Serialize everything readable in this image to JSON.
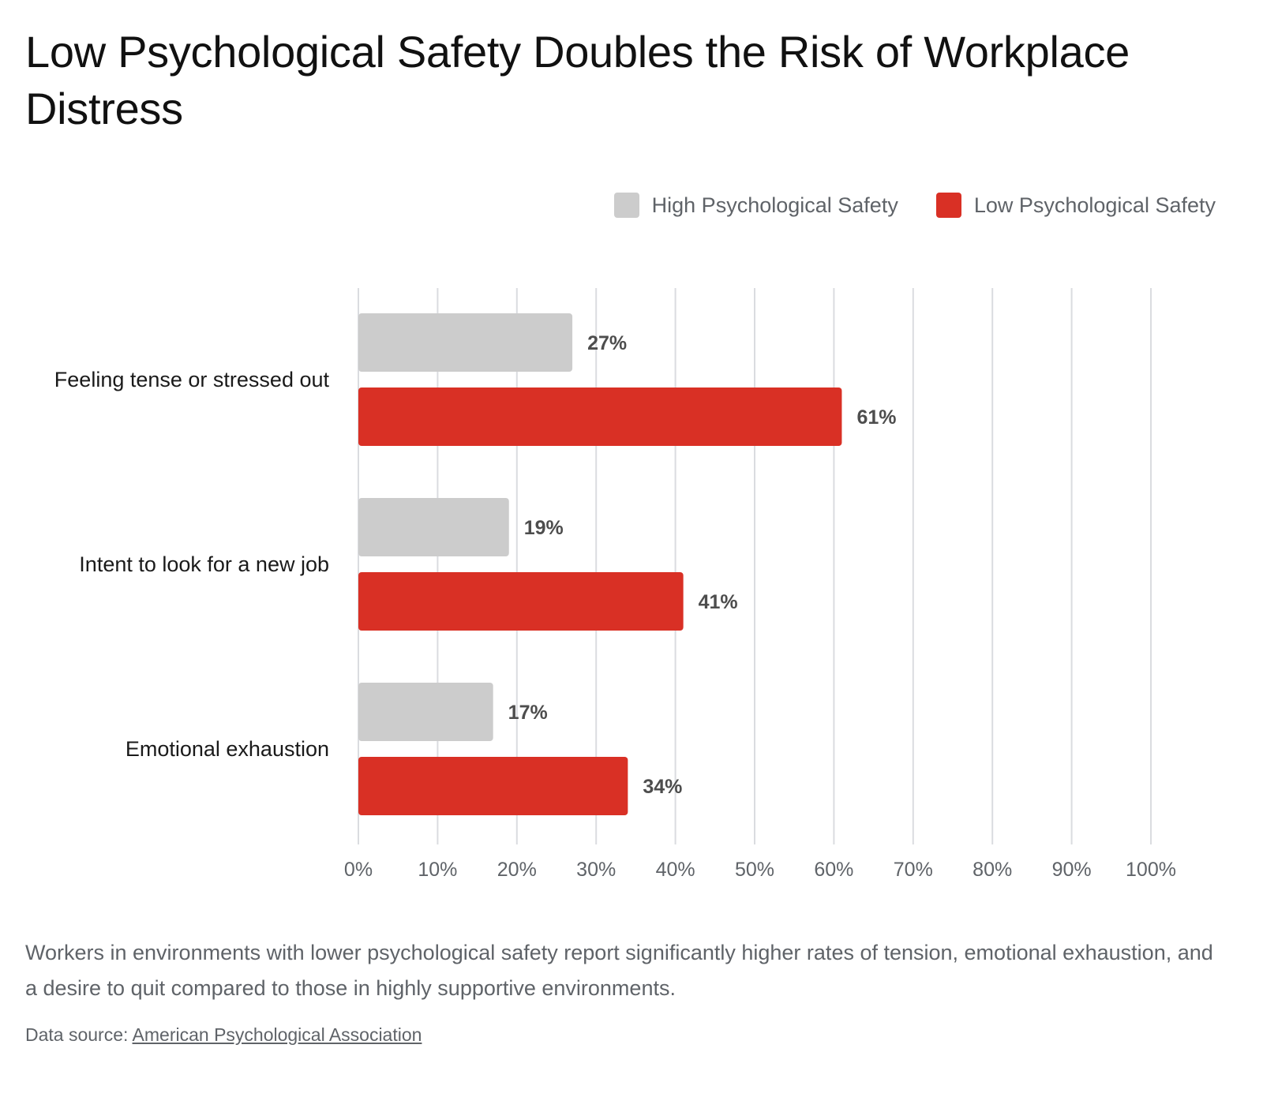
{
  "title": "Low Psychological Safety Doubles the Risk of Workplace Distress",
  "legend": {
    "high_label": "High Psychological Safety",
    "low_label": "Low Psychological Safety"
  },
  "colors": {
    "high": "#cccccc",
    "low": "#d93025",
    "grid": "#dadce0",
    "tick_text": "#5f6368",
    "value_text": "#4d4d4d"
  },
  "chart_data": {
    "type": "bar",
    "orientation": "horizontal",
    "categories": [
      "Feeling tense or stressed out",
      "Intent to look for a new job",
      "Emotional exhaustion"
    ],
    "series": [
      {
        "name": "High Psychological Safety",
        "values": [
          27,
          19,
          17
        ],
        "labels": [
          "27%",
          "19%",
          "17%"
        ]
      },
      {
        "name": "Low Psychological Safety",
        "values": [
          61,
          41,
          34
        ],
        "labels": [
          "61%",
          "41%",
          "34%"
        ]
      }
    ],
    "xlim": [
      0,
      100
    ],
    "xticks": [
      "0%",
      "10%",
      "20%",
      "30%",
      "40%",
      "50%",
      "60%",
      "70%",
      "80%",
      "90%",
      "100%"
    ],
    "grid": true,
    "legend_position": "top-right"
  },
  "caption": "Workers in environments with lower psychological safety report significantly higher rates of tension, emotional exhaustion, and a desire to quit compared to those in highly supportive environments.",
  "source": {
    "prefix": "Data source: ",
    "link_text": "American Psychological Association"
  }
}
